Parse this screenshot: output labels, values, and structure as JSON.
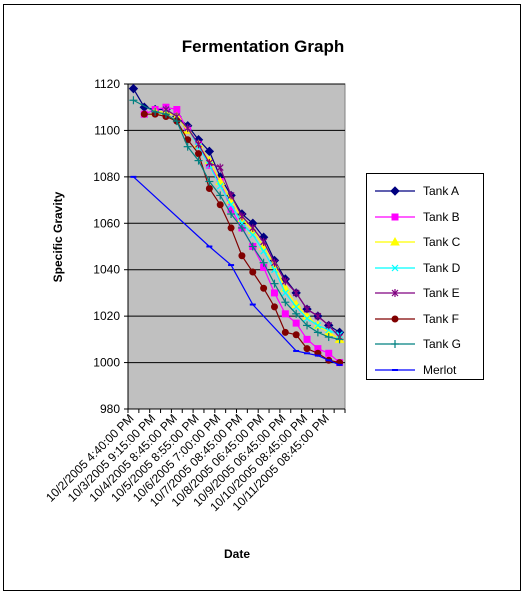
{
  "chart_data": {
    "type": "line",
    "title": "Fermentation Graph",
    "xlabel": "Date",
    "ylabel": "Specific Gravity",
    "ylim": [
      980,
      1120
    ],
    "yticks": [
      980,
      1000,
      1020,
      1040,
      1060,
      1080,
      1100,
      1120
    ],
    "grid": true,
    "legend_position": "right",
    "plot_background": "#c0c0c0",
    "xtick_labels": [
      "10/2/2005 4:40:00 PM",
      "10/3/2005 9:15:00 PM",
      "10/4/2005 8:45:00 PM",
      "10/5/2005 8:55:00 PM",
      "10/6/2005 7:00:00 PM",
      "10/7/2005 08:45:00 PM",
      "10/8/2005 06:45:00 PM",
      "10/9/2005 06:45:00 PM",
      "10/10/2005 08:45:00 PM",
      "10/11/2005 08:45:00 PM"
    ],
    "series": [
      {
        "name": "Tank A",
        "color": "#000080",
        "marker": "diamond",
        "values": [
          1118,
          1110,
          1109,
          1109,
          1106,
          1102,
          1096,
          1091,
          1080,
          1072,
          1064,
          1060,
          1054,
          1044,
          1036,
          1030,
          1023,
          1020,
          1016,
          1013
        ]
      },
      {
        "name": "Tank B",
        "color": "#ff00ff",
        "marker": "square",
        "values": [
          null,
          1107,
          1109,
          1110,
          1109,
          1100,
          1094,
          1085,
          1078,
          1066,
          1058,
          1050,
          1041,
          1030,
          1021,
          1017,
          1010,
          1006,
          1004,
          1000
        ]
      },
      {
        "name": "Tank C",
        "color": "#ffff00",
        "marker": "triangle",
        "values": [
          null,
          null,
          1108,
          1108,
          1106,
          1100,
          1094,
          1087,
          1078,
          1070,
          1062,
          1057,
          1050,
          1042,
          1032,
          1025,
          1020,
          1016,
          1013,
          1010
        ]
      },
      {
        "name": "Tank D",
        "color": "#00ffff",
        "marker": "x",
        "values": [
          null,
          null,
          null,
          1109,
          1106,
          1101,
          1093,
          1085,
          1076,
          1068,
          1060,
          1055,
          1048,
          1040,
          1030,
          1024,
          1019,
          1016,
          1014,
          1012
        ]
      },
      {
        "name": "Tank E",
        "color": "#800080",
        "marker": "star",
        "values": [
          null,
          null,
          null,
          1109,
          1106,
          1101,
          1094,
          1086,
          1084,
          1072,
          1063,
          1058,
          1052,
          1043,
          1035,
          1030,
          1023,
          1020,
          1016,
          1011
        ]
      },
      {
        "name": "Tank F",
        "color": "#800000",
        "marker": "circle",
        "values": [
          null,
          1107,
          1107,
          1106,
          1104,
          1096,
          1090,
          1075,
          1068,
          1058,
          1046,
          1039,
          1032,
          1024,
          1013,
          1012,
          1006,
          1004,
          1001,
          1000
        ]
      },
      {
        "name": "Tank G",
        "color": "#008080",
        "marker": "plus",
        "values": [
          1113,
          null,
          1108,
          1107,
          1104,
          1093,
          1087,
          1078,
          1072,
          1064,
          1058,
          1050,
          1043,
          1034,
          1026,
          1021,
          1016,
          1013,
          1011,
          1010
        ]
      },
      {
        "name": "Merlot",
        "color": "#0000ff",
        "marker": "dash",
        "values": [
          1080,
          null,
          null,
          null,
          null,
          null,
          null,
          1050,
          null,
          1042,
          null,
          1025,
          null,
          null,
          null,
          1005,
          1004,
          1003,
          1001,
          999
        ]
      }
    ]
  }
}
